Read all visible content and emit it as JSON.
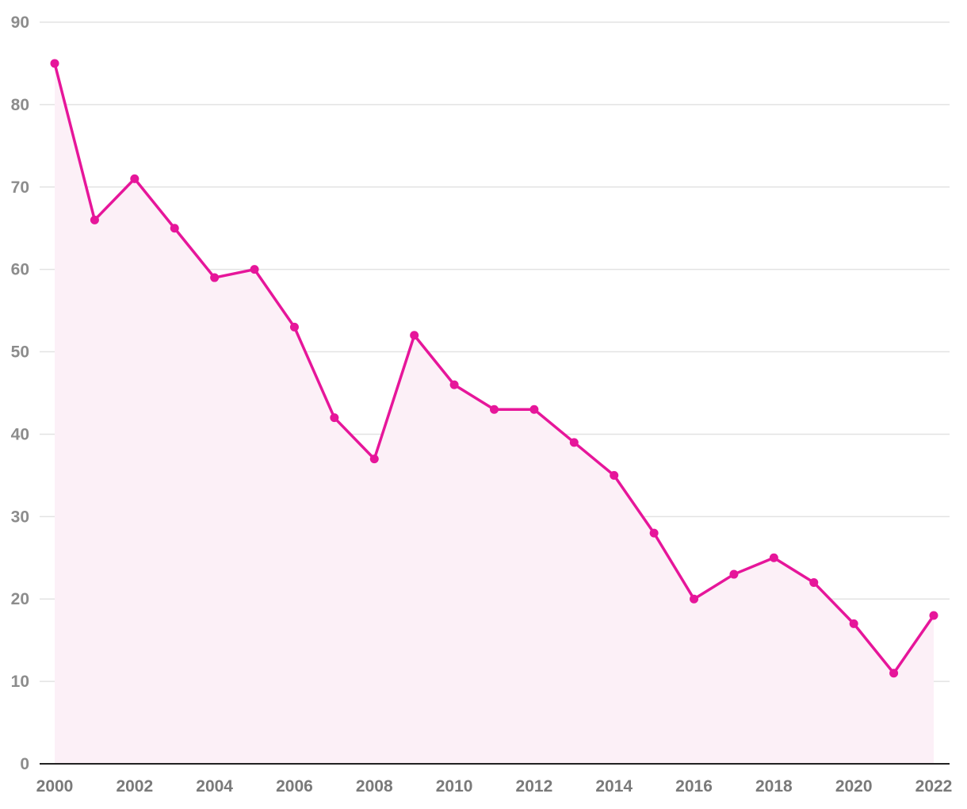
{
  "chart_data": {
    "type": "area",
    "title": "",
    "xlabel": "",
    "ylabel": "",
    "x": [
      2000,
      2001,
      2002,
      2003,
      2004,
      2005,
      2006,
      2007,
      2008,
      2009,
      2010,
      2011,
      2012,
      2013,
      2014,
      2015,
      2016,
      2017,
      2018,
      2019,
      2020,
      2021,
      2022
    ],
    "series": [
      {
        "values": [
          85,
          66,
          71,
          65,
          59,
          60,
          53,
          42,
          37,
          52,
          46,
          43,
          43,
          39,
          35,
          28,
          20,
          23,
          25,
          22,
          17,
          11,
          18
        ],
        "color": "#e6169a",
        "fill_color": "#fcf0f7",
        "markers": true
      }
    ],
    "xlim": [
      2000,
      2022
    ],
    "ylim": [
      0,
      90
    ],
    "y_ticks": [
      0,
      10,
      20,
      30,
      40,
      50,
      60,
      70,
      80,
      90
    ],
    "x_ticks": [
      2000,
      2002,
      2004,
      2006,
      2008,
      2010,
      2012,
      2014,
      2016,
      2018,
      2020,
      2022
    ],
    "grid": true,
    "legend": "none"
  }
}
